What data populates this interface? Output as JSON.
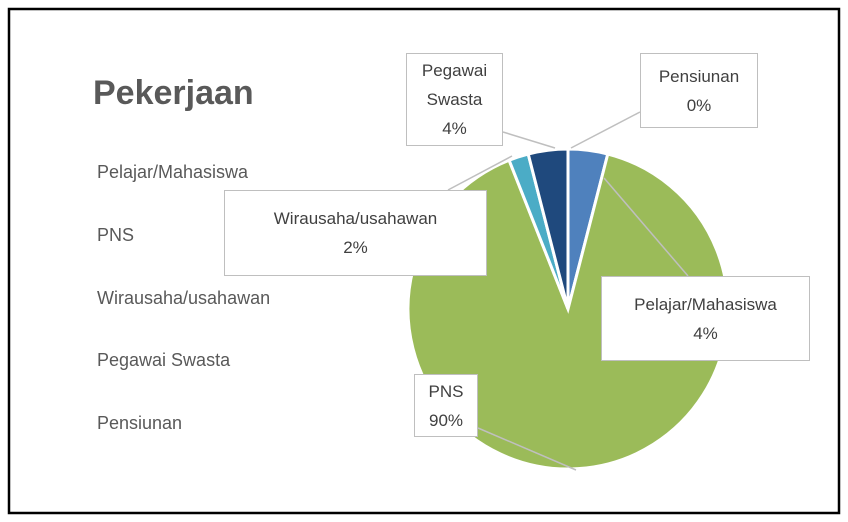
{
  "chart_data": {
    "type": "pie",
    "title": "Pekerjaan",
    "categories": [
      "Pelajar/Mahasiswa",
      "PNS",
      "Wirausaha/usahawan",
      "Pegawai Swasta",
      "Pensiunan"
    ],
    "values": [
      4,
      90,
      2,
      4,
      0
    ],
    "value_labels": [
      "4%",
      "90%",
      "2%",
      "4%",
      "0%"
    ],
    "colors": [
      "#4f81bd",
      "#9bbb59",
      "#4bacc6",
      "#1f497d",
      "#4f6228"
    ],
    "legend": "left"
  }
}
